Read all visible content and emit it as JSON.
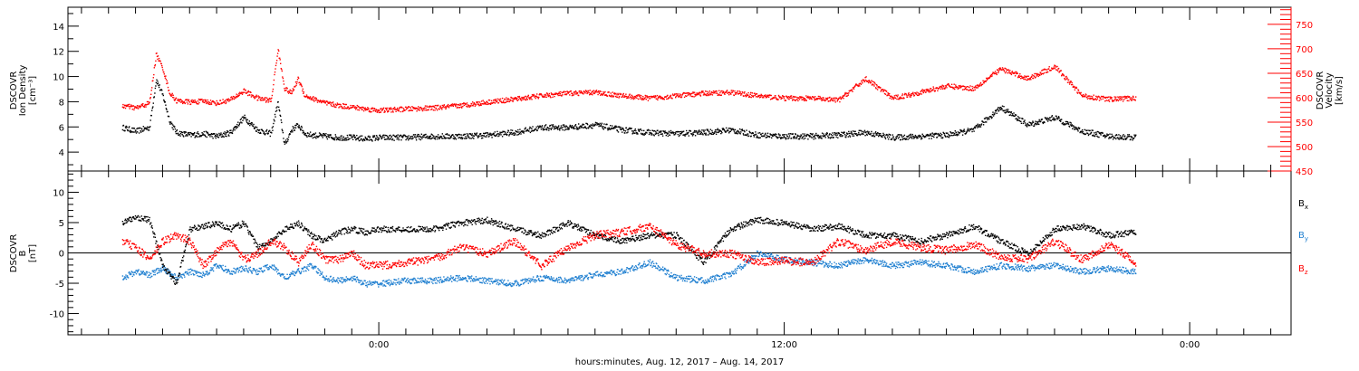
{
  "chart_data": [
    {
      "type": "scatter",
      "ylabel_left": [
        "DSCOVR",
        "Ion Density",
        "[cm⁻³]"
      ],
      "ylabel_right": [
        "DSCOVR",
        "Velocity",
        "[km/s]"
      ],
      "ylim_left": [
        2.5,
        15.5
      ],
      "ylim_right": [
        450,
        785
      ],
      "y_ticks_left": [
        "4",
        "6",
        "8",
        "10",
        "12",
        "14"
      ],
      "y_ticks_right": [
        "450",
        "500",
        "550",
        "600",
        "650",
        "700",
        "750"
      ],
      "colors": {
        "density": "#000000",
        "velocity": "#ff0000"
      },
      "series": [
        {
          "color": "#000000",
          "axis": "left",
          "x_hours": [
            -19,
            -18,
            -17,
            -16.5,
            -16,
            -15.5,
            -15,
            -14,
            -13,
            -12,
            -11,
            -10,
            -9,
            -8,
            -7.5,
            -7,
            -6.5,
            -6,
            -5.5,
            -5,
            -4,
            -3,
            -2,
            -1,
            0,
            2,
            4,
            6,
            8,
            10,
            12,
            14,
            16,
            18,
            20,
            22,
            24,
            26,
            28,
            30,
            32,
            34,
            36,
            38,
            40,
            42,
            44,
            46,
            48,
            50,
            52,
            54,
            56
          ],
          "values": [
            6,
            5.7,
            6,
            9.8,
            8.5,
            6.5,
            5.6,
            5.4,
            5.5,
            5.3,
            5.6,
            6.8,
            5.8,
            5.5,
            8,
            4.6,
            5.8,
            6.2,
            5.5,
            5.4,
            5.3,
            5.2,
            5.2,
            5.1,
            5.2,
            5.2,
            5.3,
            5.3,
            5.4,
            5.6,
            6,
            6,
            6.2,
            5.8,
            5.6,
            5.5,
            5.6,
            5.8,
            5.4,
            5.3,
            5.3,
            5.4,
            5.6,
            5.2,
            5.3,
            5.4,
            5.8,
            7.6,
            6.2,
            6.8,
            5.7,
            5.3,
            5.2
          ]
        },
        {
          "color": "#ff0000",
          "axis": "right",
          "x_hours": [
            -19,
            -18,
            -17,
            -16.5,
            -16,
            -15.5,
            -15,
            -14,
            -13,
            -12,
            -11,
            -10,
            -9,
            -8,
            -7.5,
            -7,
            -6.5,
            -6,
            -5.5,
            -5,
            -4,
            -3,
            -2,
            -1,
            0,
            2,
            4,
            6,
            8,
            10,
            12,
            14,
            16,
            18,
            20,
            22,
            24,
            26,
            28,
            30,
            32,
            34,
            36,
            38,
            40,
            42,
            44,
            46,
            48,
            50,
            52,
            54,
            56
          ],
          "values": [
            585,
            580,
            590,
            690,
            660,
            610,
            595,
            592,
            594,
            590,
            597,
            615,
            600,
            595,
            700,
            620,
            610,
            640,
            605,
            600,
            590,
            585,
            582,
            578,
            575,
            578,
            580,
            585,
            592,
            598,
            605,
            610,
            612,
            605,
            600,
            605,
            610,
            612,
            605,
            600,
            600,
            596,
            640,
            600,
            612,
            625,
            620,
            660,
            640,
            665,
            605,
            598,
            600
          ]
        }
      ]
    },
    {
      "type": "scatter",
      "ylabel_left": [
        "DSCOVR",
        "B",
        "[nT]"
      ],
      "ylim": [
        -13.5,
        13.5
      ],
      "y_ticks": [
        "-10",
        "-5",
        "0",
        "5",
        "10"
      ],
      "colors": {
        "Bx": "#000000",
        "By": "#1f7fd0",
        "Bz": "#ff0000"
      },
      "legend": [
        {
          "label": "B",
          "sub": "x",
          "color": "#000000"
        },
        {
          "label": "B",
          "sub": "y",
          "color": "#1f7fd0"
        },
        {
          "label": "B",
          "sub": "z",
          "color": "#ff0000"
        }
      ],
      "series": [
        {
          "name": "Bx",
          "color": "#000000",
          "x_hours": [
            -19,
            -18,
            -17,
            -16,
            -15,
            -14,
            -13,
            -12,
            -11,
            -10,
            -9,
            -8,
            -7,
            -6,
            -5,
            -4,
            -3,
            -2,
            -1,
            0,
            2,
            4,
            6,
            8,
            10,
            12,
            14,
            16,
            18,
            20,
            22,
            24,
            26,
            28,
            30,
            32,
            34,
            36,
            38,
            40,
            42,
            44,
            46,
            48,
            50,
            52,
            54,
            56
          ],
          "values": [
            5,
            6,
            5.5,
            -2,
            -5,
            4,
            4.5,
            5,
            4,
            5,
            1,
            2,
            4,
            5,
            3,
            2,
            3.5,
            4,
            3.5,
            4,
            4,
            4,
            5,
            5.5,
            4,
            3,
            5,
            3,
            2,
            3,
            3,
            -1.5,
            4,
            5.5,
            5,
            4,
            4.5,
            3,
            3,
            2,
            3,
            4.5,
            2,
            0,
            4,
            4.5,
            3,
            3.5
          ]
        },
        {
          "name": "By",
          "color": "#1f7fd0",
          "x_hours": [
            -19,
            -18,
            -17,
            -16,
            -15,
            -14,
            -13,
            -12,
            -11,
            -10,
            -9,
            -8,
            -7,
            -6,
            -5,
            -4,
            -3,
            -2,
            -1,
            0,
            2,
            4,
            6,
            8,
            10,
            12,
            14,
            16,
            18,
            20,
            22,
            24,
            26,
            28,
            30,
            32,
            34,
            36,
            38,
            40,
            42,
            44,
            46,
            48,
            50,
            52,
            54,
            56
          ],
          "values": [
            -4,
            -3,
            -3.5,
            -2.5,
            -4,
            -3,
            -3.5,
            -2,
            -3,
            -2.5,
            -3,
            -2,
            -4,
            -3,
            -2,
            -4,
            -4.5,
            -4,
            -5,
            -5,
            -4.5,
            -4.5,
            -4,
            -4.5,
            -5,
            -4,
            -4.5,
            -3.5,
            -3,
            -1.5,
            -4,
            -4.5,
            -3.5,
            0,
            -1,
            -1.5,
            -2,
            -1,
            -2,
            -1.5,
            -2,
            -3,
            -2,
            -2.5,
            -2,
            -3,
            -2.5,
            -3
          ]
        },
        {
          "name": "Bz",
          "color": "#ff0000",
          "x_hours": [
            -19,
            -18,
            -17,
            -16,
            -15,
            -14,
            -13,
            -12,
            -11,
            -10,
            -9,
            -8,
            -7,
            -6,
            -5,
            -4,
            -3,
            -2,
            -1,
            0,
            2,
            4,
            6,
            8,
            10,
            12,
            14,
            16,
            18,
            20,
            22,
            24,
            26,
            28,
            30,
            32,
            34,
            36,
            38,
            40,
            42,
            44,
            46,
            48,
            50,
            52,
            54,
            56
          ],
          "values": [
            2,
            1,
            -1,
            2,
            3,
            2,
            -2,
            0.5,
            2,
            -1,
            0,
            2,
            1,
            -1.5,
            1.5,
            -1,
            -1,
            0,
            -2,
            -2,
            -1.5,
            -1,
            1,
            0,
            2,
            -2,
            1,
            3,
            3.5,
            4.5,
            1.5,
            0,
            0,
            -1.5,
            -1.2,
            -1.5,
            2,
            0.5,
            2,
            1,
            0.5,
            1.5,
            -0.5,
            -1,
            2,
            -1,
            1.5,
            -1.5
          ]
        }
      ]
    }
  ],
  "x_axis": {
    "xlim_hours": [
      -23,
      67.5
    ],
    "tick_labels": [
      {
        "hour": 0,
        "label": "0:00"
      },
      {
        "hour": 30,
        "label": "12:00"
      },
      {
        "hour": 60,
        "label": "0:00"
      }
    ],
    "title": "hours:minutes, Aug. 12, 2017 – Aug. 14, 2017"
  }
}
